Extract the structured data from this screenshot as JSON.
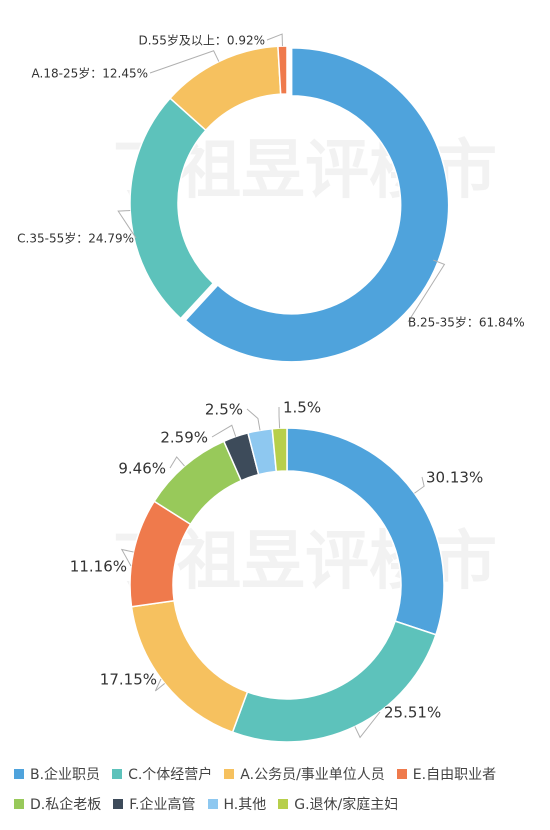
{
  "watermark": "丁祖昱评楼市",
  "colors": {
    "blue": "#4fa3dc",
    "teal": "#5dc2bb",
    "yellow": "#f6c15f",
    "orange": "#ef7a4c",
    "green": "#98c95a",
    "navy": "#3d4b5a",
    "lightblue": "#8ec8f0",
    "lime": "#b7cf4b"
  },
  "chart_data": [
    {
      "type": "pie",
      "donut": true,
      "slices": [
        {
          "label": "B.25-35岁：61.84%",
          "value": 61.84,
          "color": "#4fa3dc"
        },
        {
          "label": "C.35-55岁：24.79%",
          "value": 24.79,
          "color": "#5dc2bb"
        },
        {
          "label": "A.18-25岁：12.45%",
          "value": 12.45,
          "color": "#f6c15f"
        },
        {
          "label": "D.55岁及以上：0.92%",
          "value": 0.92,
          "color": "#ef7a4c"
        }
      ]
    },
    {
      "type": "pie",
      "donut": true,
      "slices": [
        {
          "label": "30.13%",
          "value": 30.13,
          "color": "#4fa3dc"
        },
        {
          "label": "25.51%",
          "value": 25.51,
          "color": "#5dc2bb"
        },
        {
          "label": "17.15%",
          "value": 17.15,
          "color": "#f6c15f"
        },
        {
          "label": "11.16%",
          "value": 11.16,
          "color": "#ef7a4c"
        },
        {
          "label": "9.46%",
          "value": 9.46,
          "color": "#98c95a"
        },
        {
          "label": "2.59%",
          "value": 2.59,
          "color": "#3d4b5a"
        },
        {
          "label": "2.5%",
          "value": 2.5,
          "color": "#8ec8f0"
        },
        {
          "label": "1.5%",
          "value": 1.5,
          "color": "#b7cf4b"
        }
      ],
      "legend": [
        "B.企业职员",
        "C.个体经营户",
        "A.公务员/事业单位人员",
        "E.自由职业者",
        "D.私企老板",
        "F.企业高管",
        "H.其他",
        "G.退休/家庭主妇"
      ],
      "legend_placement": "bottom"
    }
  ]
}
